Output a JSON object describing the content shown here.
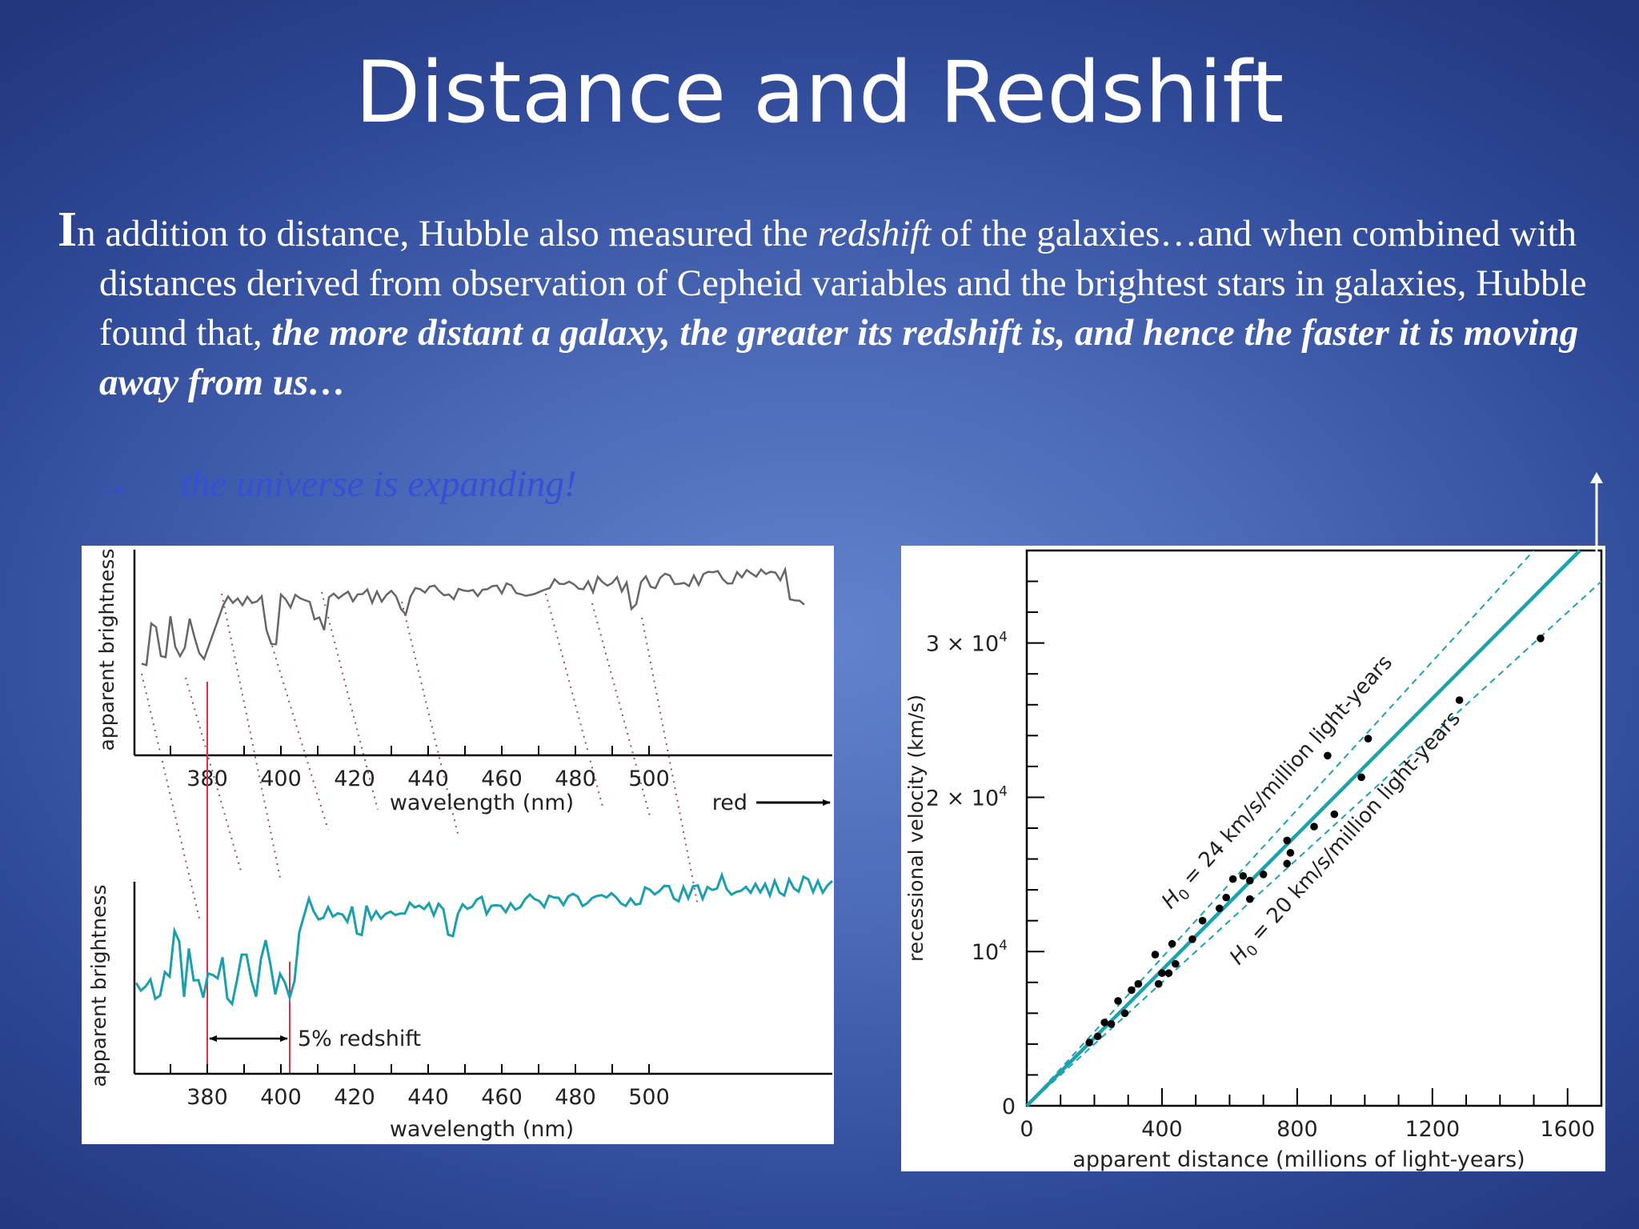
{
  "slide": {
    "title": "Distance and Redshift",
    "para": {
      "cap": "I",
      "t1": "n addition to distance, Hubble also measured the ",
      "t2": "redshift",
      "t3": " of the galaxies…and when combined with distances derived from observation of Cepheid variables and the brightest stars in galaxies, Hubble found that, ",
      "t4": "the more distant a galaxy, the greater its redshift is, and hence the faster it is moving away from us…"
    },
    "conclusion": {
      "arrow": "→",
      "text": "the universe is expanding!"
    }
  },
  "spectra": {
    "ylabel": "apparent brightness",
    "xlabel": "wavelength (nm)",
    "red_label": "red",
    "redshift_label": "5% redshift",
    "ticks": [
      "380",
      "400",
      "420",
      "440",
      "460",
      "480",
      "500"
    ]
  },
  "chart_data": {
    "type": "scatter",
    "xlabel": "apparent distance (millions of light-years)",
    "ylabel": "recessional velocity (km/s)",
    "xlim": [
      0,
      1700
    ],
    "ylim": [
      0,
      36000
    ],
    "xticks": [
      {
        "v": 0,
        "t": "0"
      },
      {
        "v": 400,
        "t": "400"
      },
      {
        "v": 800,
        "t": "800"
      },
      {
        "v": 1200,
        "t": "1200"
      },
      {
        "v": 1600,
        "t": "1600"
      }
    ],
    "yticks": [
      {
        "v": 0,
        "b": "0",
        "e": ""
      },
      {
        "v": 10000,
        "b": "10",
        "e": "4"
      },
      {
        "v": 20000,
        "b": "2 × 10",
        "e": "4"
      },
      {
        "v": 30000,
        "b": "3 × 10",
        "e": "4"
      }
    ],
    "fit_label_24": {
      "pre": "H",
      "sub": "0",
      "post": " = 24 km/s/million light-years"
    },
    "fit_label_20": {
      "pre": "H",
      "sub": "0",
      "post": " = 20 km/s/million light-years"
    },
    "points": [
      [
        185,
        4100
      ],
      [
        210,
        4500
      ],
      [
        230,
        5400
      ],
      [
        250,
        5300
      ],
      [
        270,
        6800
      ],
      [
        290,
        6000
      ],
      [
        310,
        7500
      ],
      [
        330,
        7900
      ],
      [
        380,
        9800
      ],
      [
        390,
        7900
      ],
      [
        400,
        8600
      ],
      [
        420,
        8600
      ],
      [
        430,
        10500
      ],
      [
        440,
        9200
      ],
      [
        490,
        10800
      ],
      [
        520,
        12000
      ],
      [
        570,
        12800
      ],
      [
        590,
        13500
      ],
      [
        610,
        14700
      ],
      [
        640,
        14900
      ],
      [
        660,
        14600
      ],
      [
        660,
        13400
      ],
      [
        700,
        15000
      ],
      [
        770,
        15700
      ],
      [
        770,
        17200
      ],
      [
        780,
        16400
      ],
      [
        850,
        18100
      ],
      [
        890,
        22700
      ],
      [
        910,
        18900
      ],
      [
        990,
        21300
      ],
      [
        1010,
        23800
      ],
      [
        1280,
        26300
      ],
      [
        1520,
        30300
      ]
    ]
  }
}
